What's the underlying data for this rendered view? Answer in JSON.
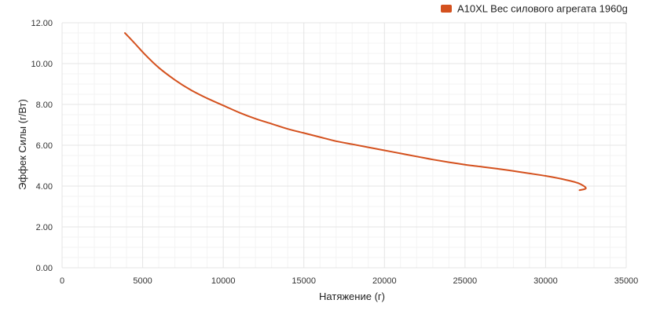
{
  "chart_data": {
    "type": "line",
    "title": "",
    "xlabel": "Натяжение (г)",
    "ylabel": "Эффек Силы (г/Вт)",
    "xlim": [
      0,
      35000
    ],
    "ylim": [
      0,
      12
    ],
    "x_ticks": [
      0,
      5000,
      10000,
      15000,
      20000,
      25000,
      30000,
      35000
    ],
    "x_tick_labels": [
      "0",
      "5000",
      "10000",
      "15000",
      "20000",
      "25000",
      "30000",
      "35000"
    ],
    "y_ticks": [
      0,
      2,
      4,
      6,
      8,
      10,
      12
    ],
    "y_tick_labels": [
      "0.00",
      "2.00",
      "4.00",
      "6.00",
      "8.00",
      "10.00",
      "12.00"
    ],
    "grid": true,
    "legend_position": "top-right",
    "series": [
      {
        "name": "A10XL Вес силового агрегата 1960g",
        "color": "#d4511e",
        "points": [
          [
            3900,
            11.5
          ],
          [
            4500,
            11.0
          ],
          [
            5200,
            10.4
          ],
          [
            6000,
            9.8
          ],
          [
            7000,
            9.2
          ],
          [
            8000,
            8.7
          ],
          [
            9000,
            8.3
          ],
          [
            10000,
            7.95
          ],
          [
            11000,
            7.6
          ],
          [
            12000,
            7.3
          ],
          [
            13000,
            7.05
          ],
          [
            14000,
            6.8
          ],
          [
            15000,
            6.6
          ],
          [
            16000,
            6.4
          ],
          [
            17000,
            6.2
          ],
          [
            18000,
            6.05
          ],
          [
            19000,
            5.9
          ],
          [
            20000,
            5.75
          ],
          [
            21000,
            5.6
          ],
          [
            22000,
            5.45
          ],
          [
            23000,
            5.3
          ],
          [
            24000,
            5.17
          ],
          [
            25000,
            5.05
          ],
          [
            26000,
            4.95
          ],
          [
            27000,
            4.85
          ],
          [
            28000,
            4.74
          ],
          [
            29000,
            4.62
          ],
          [
            30000,
            4.5
          ],
          [
            31000,
            4.35
          ],
          [
            32000,
            4.15
          ],
          [
            32500,
            3.9
          ],
          [
            32100,
            3.8
          ]
        ]
      }
    ]
  }
}
